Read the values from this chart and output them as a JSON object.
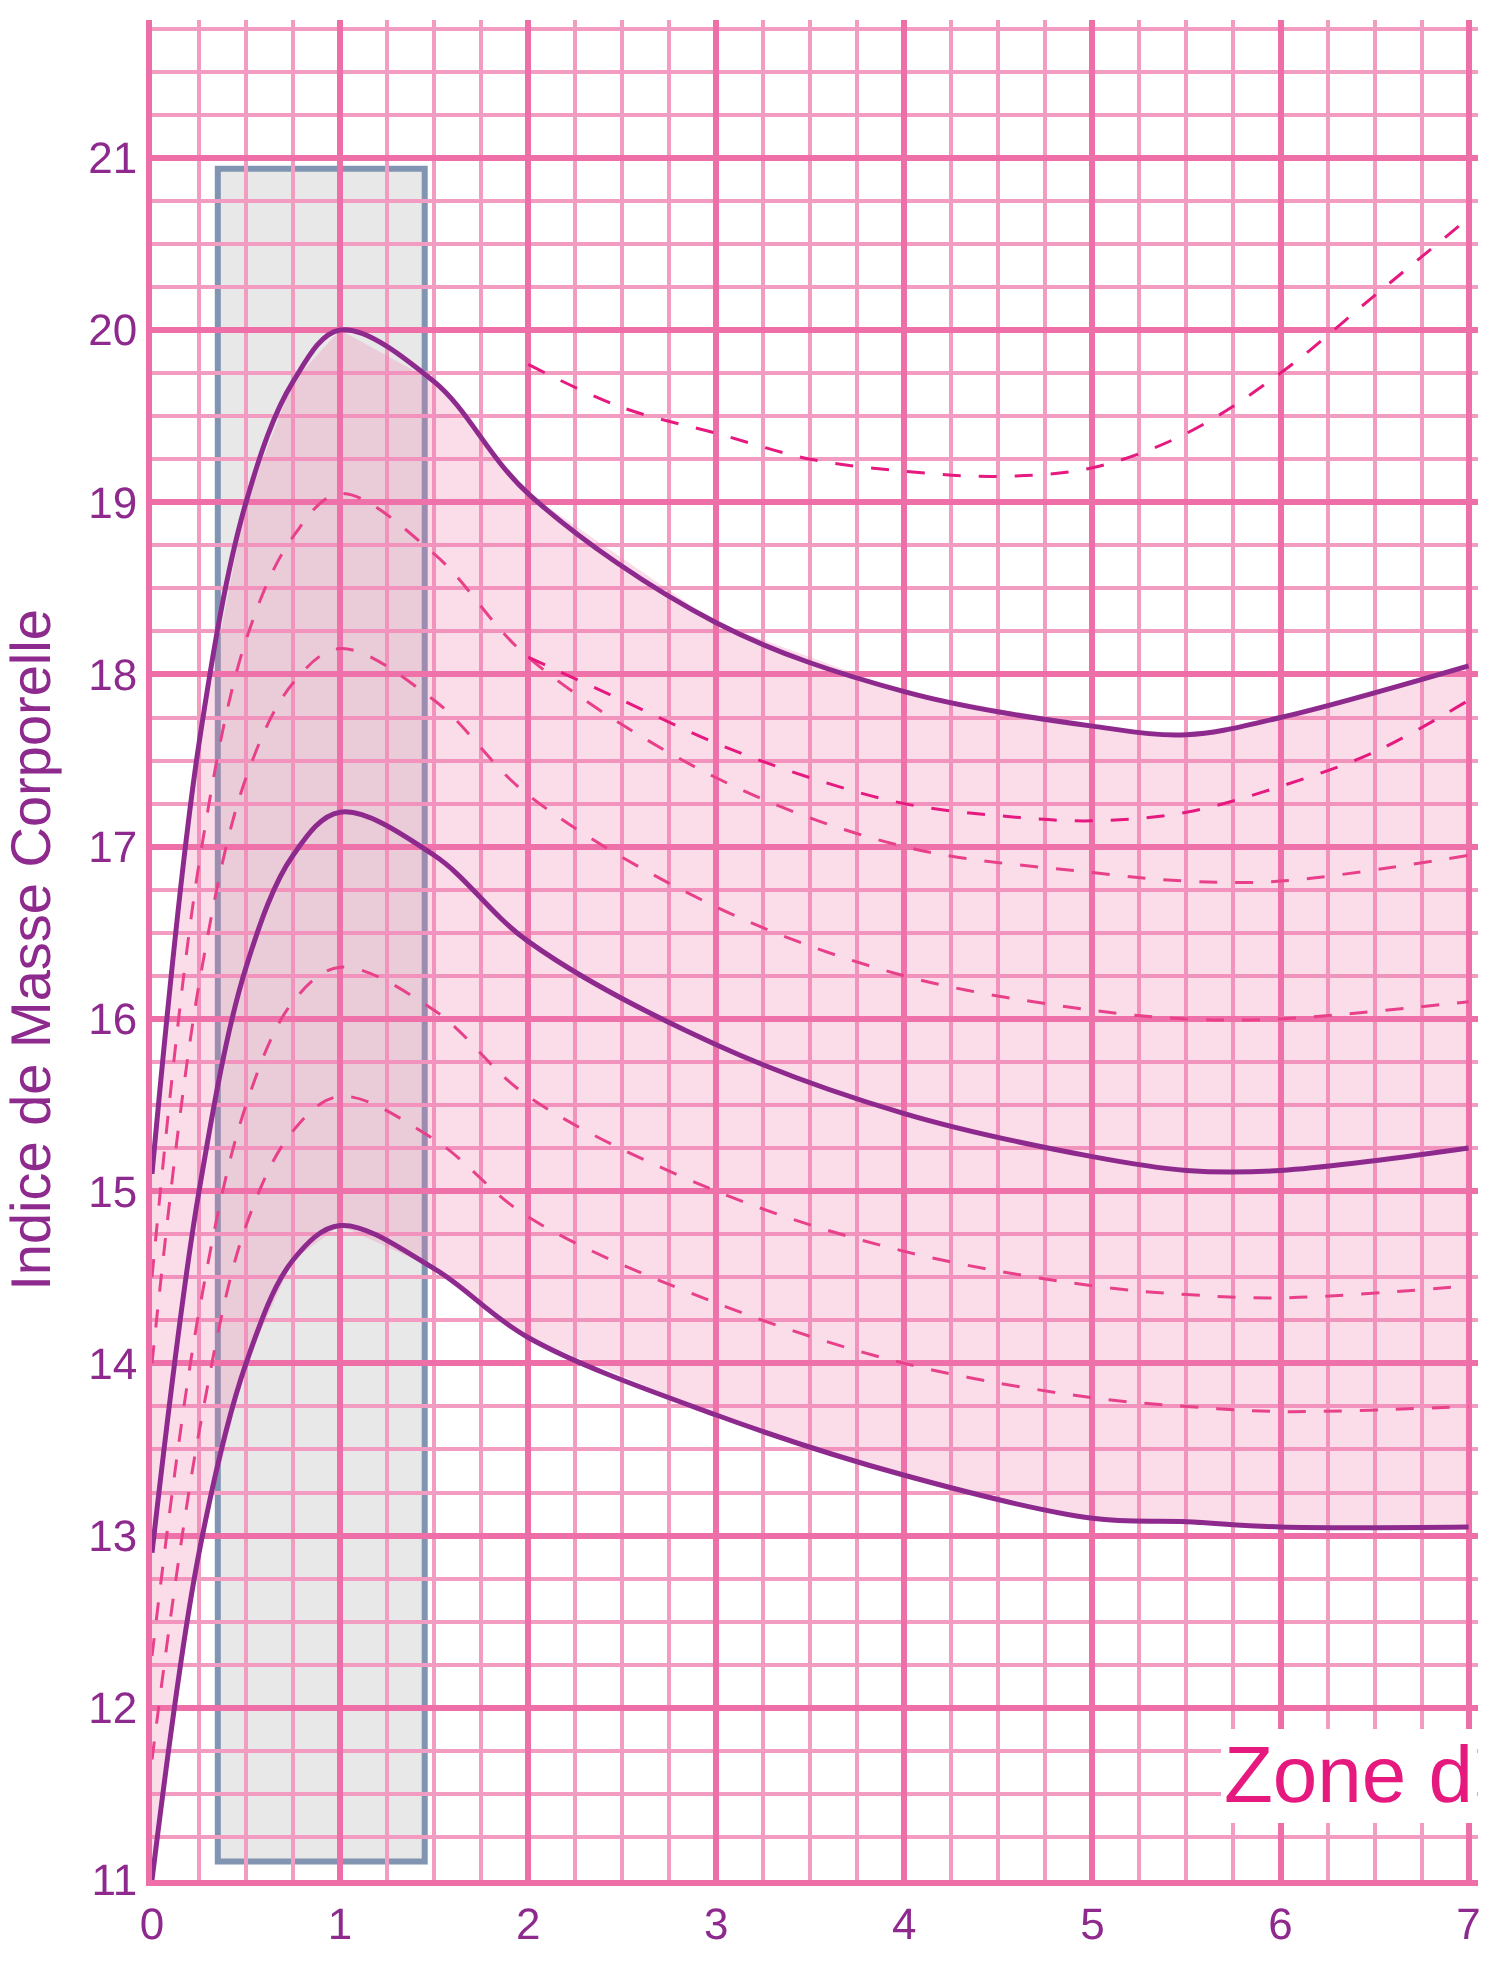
{
  "chart_data": {
    "type": "line",
    "ylabel": "Indice de Masse Corporelle",
    "annotations": [
      "Zone d"
    ],
    "x": [
      0,
      0.25,
      0.5,
      0.75,
      1,
      1.5,
      2,
      3,
      4,
      5,
      5.5,
      6,
      7
    ],
    "xlim": [
      0,
      7.05
    ],
    "ylim": [
      11,
      21.8
    ],
    "xticks": [
      0,
      {
        "value": 0.25,
        "label": null
      },
      {
        "value": 0.5,
        "label": null
      },
      {
        "value": 0.75,
        "label": null
      },
      1,
      {
        "value": 1.25,
        "label": null
      },
      {
        "value": 1.5,
        "label": null
      },
      {
        "value": 1.75,
        "label": null
      },
      2,
      {
        "value": 2.25,
        "label": null
      },
      {
        "value": 2.5,
        "label": null
      },
      {
        "value": 2.75,
        "label": null
      },
      3,
      {
        "value": 3.25,
        "label": null
      },
      {
        "value": 3.5,
        "label": null
      },
      {
        "value": 3.75,
        "label": null
      },
      4,
      {
        "value": 4.25,
        "label": null
      },
      {
        "value": 4.5,
        "label": null
      },
      {
        "value": 4.75,
        "label": null
      },
      5,
      {
        "value": 5.25,
        "label": null
      },
      {
        "value": 5.5,
        "label": null
      },
      {
        "value": 5.75,
        "label": null
      },
      6,
      {
        "value": 6.25,
        "label": null
      },
      {
        "value": 6.5,
        "label": null
      },
      {
        "value": 6.75,
        "label": null
      },
      7
    ],
    "yticks": [
      11,
      {
        "value": 11.25,
        "label": null
      },
      {
        "value": 11.5,
        "label": null
      },
      {
        "value": 11.75,
        "label": null
      },
      12,
      {
        "value": 12.25,
        "label": null
      },
      {
        "value": 12.5,
        "label": null
      },
      {
        "value": 12.75,
        "label": null
      },
      13,
      {
        "value": 13.25,
        "label": null
      },
      {
        "value": 13.5,
        "label": null
      },
      {
        "value": 13.75,
        "label": null
      },
      14,
      {
        "value": 14.25,
        "label": null
      },
      {
        "value": 14.5,
        "label": null
      },
      {
        "value": 14.75,
        "label": null
      },
      15,
      {
        "value": 15.25,
        "label": null
      },
      {
        "value": 15.5,
        "label": null
      },
      {
        "value": 15.75,
        "label": null
      },
      16,
      {
        "value": 16.25,
        "label": null
      },
      {
        "value": 16.5,
        "label": null
      },
      {
        "value": 16.75,
        "label": null
      },
      17,
      {
        "value": 17.25,
        "label": null
      },
      {
        "value": 17.5,
        "label": null
      },
      {
        "value": 17.75,
        "label": null
      },
      18,
      {
        "value": 18.25,
        "label": null
      },
      {
        "value": 18.5,
        "label": null
      },
      {
        "value": 18.75,
        "label": null
      },
      19,
      {
        "value": 19.25,
        "label": null
      },
      {
        "value": 19.5,
        "label": null
      },
      {
        "value": 19.75,
        "label": null
      },
      20,
      {
        "value": 20.25,
        "label": null
      },
      {
        "value": 20.5,
        "label": null
      },
      {
        "value": 20.75,
        "label": null
      },
      21,
      {
        "value": 21.25,
        "label": null
      },
      {
        "value": 21.5,
        "label": null
      },
      {
        "value": 21.75,
        "label": null
      }
    ],
    "grid": true,
    "marker": "none",
    "bands": [
      {
        "axis": "x",
        "from": 0.35,
        "to": 1.45,
        "color": "#d9d9d9"
      }
    ],
    "series": [
      {
        "color": "#8e2a8e",
        "line_style": "solid",
        "values": [
          15.1,
          17.6,
          19.0,
          19.7,
          20.0,
          19.7,
          19.05,
          18.3,
          17.9,
          17.7,
          17.65,
          17.75,
          18.05
        ]
      },
      {
        "color": "#e8418a",
        "line_style": "dashed",
        "values": [
          14.5,
          16.9,
          18.2,
          18.8,
          19.05,
          18.7,
          18.1,
          17.4,
          17.0,
          16.85,
          16.8,
          16.8,
          16.95
        ]
      },
      {
        "color": "#e8418a",
        "line_style": "dashed",
        "values": [
          14.0,
          16.2,
          17.4,
          17.95,
          18.15,
          17.85,
          17.3,
          16.65,
          16.25,
          16.05,
          16.0,
          16.0,
          16.1
        ]
      },
      {
        "color": "#8e2a8e",
        "line_style": "solid",
        "values": [
          12.9,
          15.0,
          16.3,
          16.95,
          17.2,
          16.95,
          16.45,
          15.85,
          15.45,
          15.2,
          15.12,
          15.12,
          15.25
        ],
        "lower": [
          11.0,
          12.9,
          14.0,
          14.6,
          14.8,
          14.55,
          14.15,
          13.7,
          13.35,
          13.1,
          13.08,
          13.05,
          13.05
        ],
        "upper": [
          15.1,
          17.6,
          19.0,
          19.7,
          20.0,
          19.7,
          19.05,
          18.3,
          17.9,
          17.7,
          17.65,
          17.75,
          18.05
        ]
      },
      {
        "color": "#e8418a",
        "line_style": "dashed",
        "values": [
          12.3,
          14.3,
          15.5,
          16.1,
          16.3,
          16.05,
          15.55,
          15.0,
          14.65,
          14.45,
          14.4,
          14.38,
          14.45
        ]
      },
      {
        "color": "#e8418a",
        "line_style": "dashed",
        "values": [
          11.7,
          13.6,
          14.8,
          15.35,
          15.55,
          15.3,
          14.85,
          14.35,
          14.0,
          13.8,
          13.75,
          13.72,
          13.75
        ]
      },
      {
        "color": "#8e2a8e",
        "line_style": "solid",
        "values": [
          11.0,
          12.9,
          14.0,
          14.6,
          14.8,
          14.55,
          14.15,
          13.7,
          13.35,
          13.1,
          13.08,
          13.05,
          13.05
        ]
      },
      {
        "color": "#e6197f",
        "line_style": "dashed",
        "x": [
          2,
          2.5,
          3,
          3.5,
          4,
          4.5,
          5,
          5.5,
          6,
          6.5,
          7
        ],
        "values": [
          19.8,
          19.55,
          19.4,
          19.25,
          19.18,
          19.15,
          19.2,
          19.4,
          19.75,
          20.2,
          20.65
        ]
      },
      {
        "color": "#e6197f",
        "line_style": "dashed",
        "x": [
          2,
          2.5,
          3,
          3.5,
          4,
          4.5,
          5,
          5.5,
          6,
          6.5,
          7
        ],
        "values": [
          18.1,
          17.85,
          17.6,
          17.4,
          17.25,
          17.18,
          17.15,
          17.2,
          17.35,
          17.55,
          17.85
        ]
      }
    ]
  }
}
